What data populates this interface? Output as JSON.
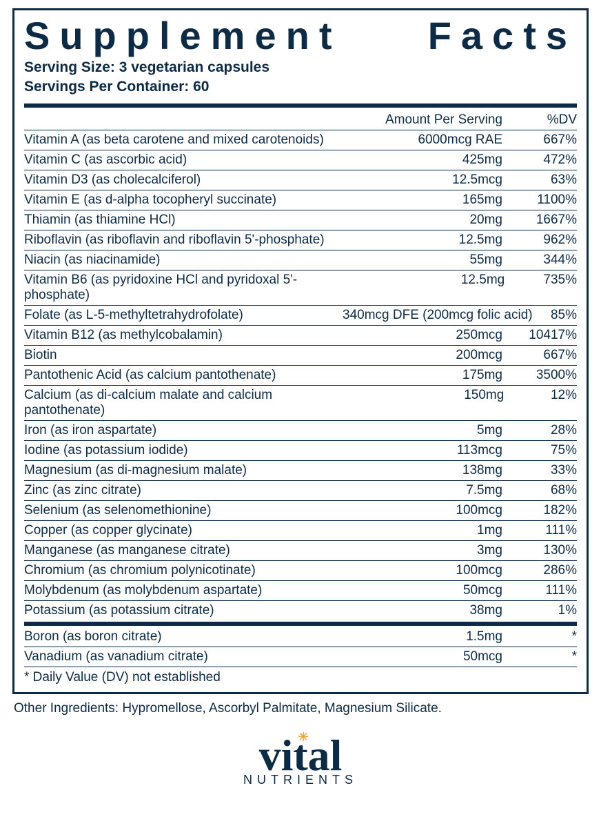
{
  "colors": {
    "text": "#0d2b45",
    "rule": "#0d2b45",
    "background": "#ffffff",
    "sun": "#f2a93b"
  },
  "typography": {
    "title_fontsize": 56,
    "title_letter_spacing": 14,
    "body_fontsize": 19,
    "serving_fontsize": 21,
    "logo_fontsize": 64,
    "logo_sub_fontsize": 18
  },
  "panel": {
    "title": "Supplement Facts",
    "serving_size_label": "Serving Size:",
    "serving_size_value": "3 vegetarian capsules",
    "servings_per_label": "Servings Per Container:",
    "servings_per_value": "60",
    "header_amount": "Amount Per Serving",
    "header_dv": "%DV",
    "footnote": "* Daily Value (DV) not established"
  },
  "rows_main": [
    {
      "name": "Vitamin A (as beta carotene and mixed carotenoids)",
      "amount": "6000mcg RAE",
      "dv": "667%"
    },
    {
      "name": "Vitamin C (as ascorbic acid)",
      "amount": "425mg",
      "dv": "472%"
    },
    {
      "name": "Vitamin D3 (as cholecalciferol)",
      "amount": "12.5mcg",
      "dv": "63%"
    },
    {
      "name": "Vitamin E (as d-alpha tocopheryl succinate)",
      "amount": "165mg",
      "dv": "1100%"
    },
    {
      "name": "Thiamin (as thiamine HCl)",
      "amount": "20mg",
      "dv": "1667%"
    },
    {
      "name": "Riboflavin (as riboflavin and riboflavin 5'-phosphate)",
      "amount": "12.5mg",
      "dv": "962%"
    },
    {
      "name": "Niacin (as niacinamide)",
      "amount": "55mg",
      "dv": "344%"
    },
    {
      "name": "Vitamin B6 (as pyridoxine HCl and pyridoxal 5'-phosphate)",
      "amount": "12.5mg",
      "dv": "735%"
    },
    {
      "name": "Folate (as L-5-methyltetrahydrofolate)",
      "amount": "340mcg DFE (200mcg folic acid)",
      "dv": "85%"
    },
    {
      "name": "Vitamin B12 (as methylcobalamin)",
      "amount": "250mcg",
      "dv": "10417%"
    },
    {
      "name": "Biotin",
      "amount": "200mcg",
      "dv": "667%"
    },
    {
      "name": "Pantothenic Acid (as calcium pantothenate)",
      "amount": "175mg",
      "dv": "3500%"
    },
    {
      "name": "Calcium (as di-calcium malate and calcium pantothenate)",
      "amount": "150mg",
      "dv": "12%"
    },
    {
      "name": "Iron (as iron aspartate)",
      "amount": "5mg",
      "dv": "28%"
    },
    {
      "name": "Iodine (as potassium iodide)",
      "amount": "113mcg",
      "dv": "75%"
    },
    {
      "name": "Magnesium (as di-magnesium malate)",
      "amount": "138mg",
      "dv": "33%"
    },
    {
      "name": "Zinc (as zinc citrate)",
      "amount": "7.5mg",
      "dv": "68%"
    },
    {
      "name": "Selenium (as selenomethionine)",
      "amount": "100mcg",
      "dv": "182%"
    },
    {
      "name": "Copper (as copper glycinate)",
      "amount": "1mg",
      "dv": "111%"
    },
    {
      "name": "Manganese (as manganese citrate)",
      "amount": "3mg",
      "dv": "130%"
    },
    {
      "name": "Chromium (as chromium polynicotinate)",
      "amount": "100mcg",
      "dv": "286%"
    },
    {
      "name": "Molybdenum (as molybdenum aspartate)",
      "amount": "50mcg",
      "dv": "111%"
    },
    {
      "name": "Potassium (as potassium citrate)",
      "amount": "38mg",
      "dv": "1%"
    }
  ],
  "rows_nodv": [
    {
      "name": "Boron (as boron citrate)",
      "amount": "1.5mg",
      "dv": "*"
    },
    {
      "name": "Vanadium (as vanadium citrate)",
      "amount": "50mcg",
      "dv": "*"
    }
  ],
  "other_ingredients": "Other Ingredients: Hypromellose, Ascorbyl Palmitate, Magnesium Silicate.",
  "logo": {
    "main": "vital",
    "sub": "NUTRIENTS"
  }
}
